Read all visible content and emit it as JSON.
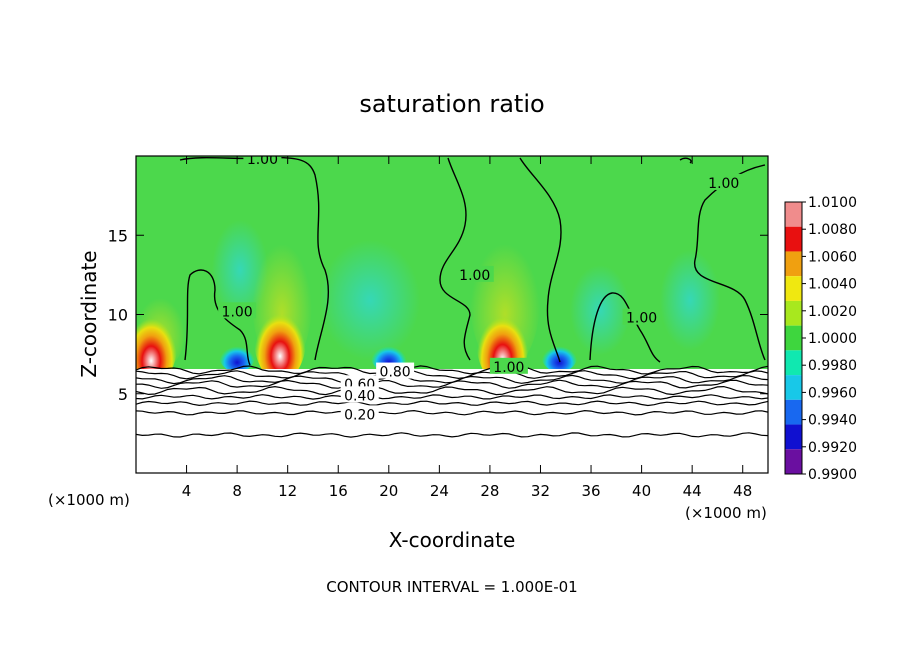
{
  "chart_data": {
    "type": "heatmap",
    "title": "saturation ratio",
    "xlabel": "X-coordinate",
    "ylabel": "Z-coordinate",
    "x_unit": "(×1000 m)",
    "footer": "CONTOUR INTERVAL = 1.000E-01",
    "xlim": [
      0,
      50
    ],
    "ylim": [
      0,
      20
    ],
    "x_ticks": [
      4,
      8,
      12,
      16,
      20,
      24,
      28,
      32,
      36,
      40,
      44,
      48
    ],
    "y_ticks": [
      5,
      10,
      15
    ],
    "colorbar": {
      "levels": [
        "0.9900",
        "0.9920",
        "0.9940",
        "0.9960",
        "0.9980",
        "1.0000",
        "1.0020",
        "1.0040",
        "1.0060",
        "1.0080",
        "1.0100"
      ],
      "colors": [
        "#6a0fa0",
        "#1010d0",
        "#1868f0",
        "#18c8e8",
        "#10e8b0",
        "#3ed63e",
        "#a8e81e",
        "#f0e810",
        "#f0a010",
        "#e81010",
        "#f08c8c"
      ]
    },
    "background_value": 1.0,
    "background_color": "#4cd84c",
    "contour_labels": [
      {
        "text": "1.00",
        "x": 10.0,
        "z": 19.8
      },
      {
        "text": "1.00",
        "x": 46.5,
        "z": 18.3
      },
      {
        "text": "1.00",
        "x": 26.8,
        "z": 12.5
      },
      {
        "text": "1.00",
        "x": 8.0,
        "z": 10.2
      },
      {
        "text": "1.00",
        "x": 40.0,
        "z": 9.8
      },
      {
        "text": "1.00",
        "x": 29.5,
        "z": 6.7
      },
      {
        "text": "0.80",
        "x": 20.5,
        "z": 6.4
      },
      {
        "text": "0.60",
        "x": 17.7,
        "z": 5.6
      },
      {
        "text": "0.40",
        "x": 17.7,
        "z": 4.9
      },
      {
        "text": "0.20",
        "x": 17.7,
        "z": 3.7
      }
    ],
    "hotspots": [
      {
        "x": 1.2,
        "z": 7.0,
        "kind": "high"
      },
      {
        "x": 11.4,
        "z": 7.3,
        "kind": "high"
      },
      {
        "x": 29.0,
        "z": 7.1,
        "kind": "high"
      },
      {
        "x": 20.0,
        "z": 7.0,
        "kind": "low"
      },
      {
        "x": 8.0,
        "z": 7.0,
        "kind": "low"
      },
      {
        "x": 33.5,
        "z": 7.0,
        "kind": "low"
      }
    ],
    "isolines_low_z": [
      6.5,
      6.2,
      5.9,
      5.6,
      5.2,
      4.8,
      4.4,
      3.8,
      2.4
    ]
  }
}
